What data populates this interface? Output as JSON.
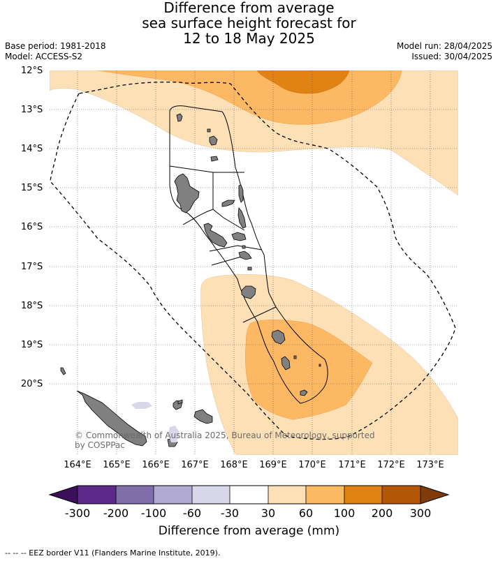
{
  "title": {
    "line1": "Difference from average",
    "line2": "sea surface height forecast for",
    "line3": "12 to 18 May 2025"
  },
  "meta": {
    "base_period": "Base period: 1981-2018",
    "model": "Model: ACCESS-S2",
    "model_run": "Model run: 28/04/2025",
    "issued": "Issued: 30/04/2025"
  },
  "axes": {
    "lat_labels": [
      "12°S",
      "13°S",
      "14°S",
      "15°S",
      "16°S",
      "17°S",
      "18°S",
      "19°S",
      "20°S"
    ],
    "lon_labels": [
      "164°E",
      "165°E",
      "166°E",
      "167°E",
      "168°E",
      "169°E",
      "170°E",
      "171°E",
      "172°E",
      "173°E"
    ]
  },
  "colorbar": {
    "ticks": [
      "-300",
      "-200",
      "-100",
      "-60",
      "-30",
      "30",
      "60",
      "100",
      "200",
      "300"
    ],
    "colors": [
      "#3b0f59",
      "#5b2a8a",
      "#7f6eaa",
      "#b0a9d1",
      "#d9d8ea",
      "#ffffff",
      "#fee0b6",
      "#fdb863",
      "#e08214",
      "#b35806",
      "#7f3b08"
    ],
    "label": "Difference from average (mm)"
  },
  "copyright": "© Commonwealth of Australia 2025, Bureau of Meteorology, supported by COSPPac",
  "footnote": "-- -- -- EEZ border V11 (Flanders Marine Institute, 2019).",
  "map_style": {
    "land_color": "#808080",
    "ocean_color": "#ffffff",
    "gridline_color": "#555555"
  }
}
